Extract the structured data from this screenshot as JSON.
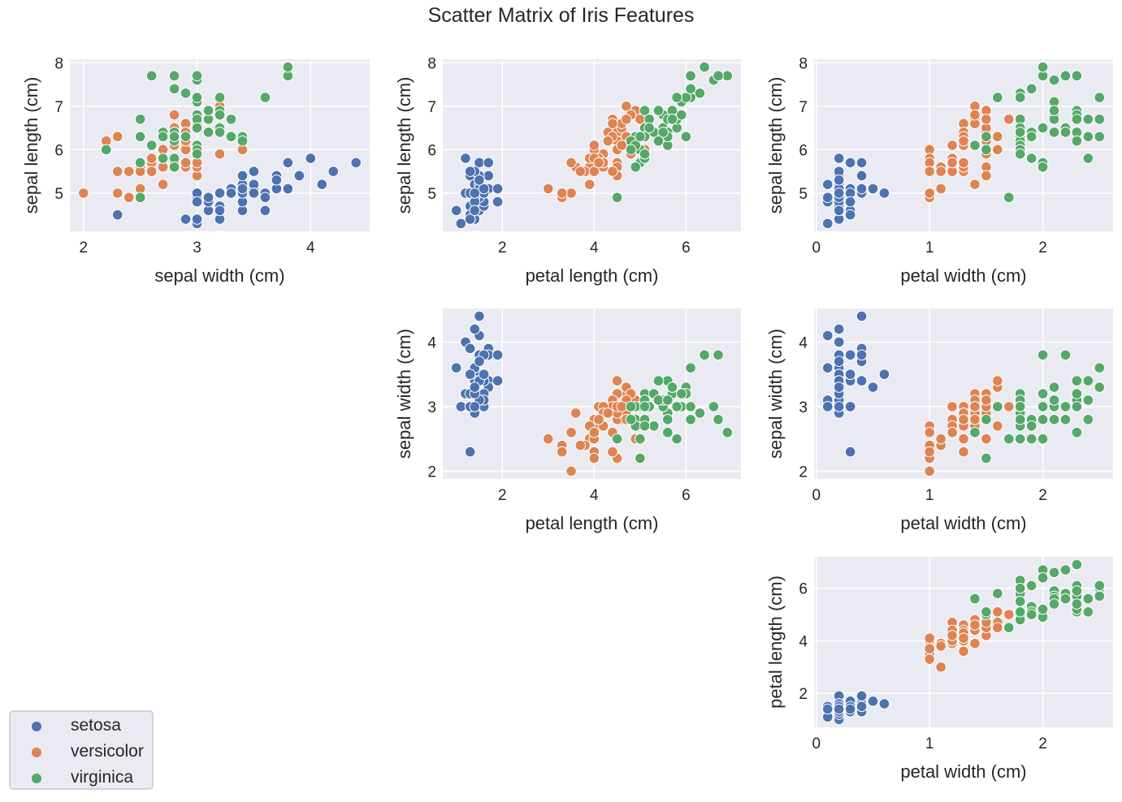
{
  "chart_data": {
    "type": "scatter",
    "title": "Scatter Matrix of Iris Features",
    "grid": true,
    "legend_placement": "bottom-left",
    "features": [
      "sepal length (cm)",
      "sepal width (cm)",
      "petal length (cm)",
      "petal width (cm)"
    ],
    "ticks": {
      "sepal length (cm)": [
        5,
        6,
        7,
        8
      ],
      "sepal width (cm)": [
        2,
        3,
        4
      ],
      "petal length (cm)": [
        2,
        4,
        6
      ],
      "petal width (cm)": [
        0,
        1,
        2
      ]
    },
    "panels": [
      {
        "x": "sepal width (cm)",
        "y": "sepal length (cm)"
      },
      {
        "x": "petal length (cm)",
        "y": "sepal length (cm)"
      },
      {
        "x": "petal width (cm)",
        "y": "sepal length (cm)"
      },
      {
        "x": "petal length (cm)",
        "y": "sepal width (cm)"
      },
      {
        "x": "petal width (cm)",
        "y": "sepal width (cm)"
      },
      {
        "x": "petal width (cm)",
        "y": "petal length (cm)"
      }
    ],
    "series": [
      {
        "name": "setosa",
        "color": "#4c72b0",
        "points": [
          [
            5.1,
            3.5,
            1.4,
            0.2
          ],
          [
            4.9,
            3.0,
            1.4,
            0.2
          ],
          [
            4.7,
            3.2,
            1.3,
            0.2
          ],
          [
            4.6,
            3.1,
            1.5,
            0.2
          ],
          [
            5.0,
            3.6,
            1.4,
            0.2
          ],
          [
            5.4,
            3.9,
            1.7,
            0.4
          ],
          [
            4.6,
            3.4,
            1.4,
            0.3
          ],
          [
            5.0,
            3.4,
            1.5,
            0.2
          ],
          [
            4.4,
            2.9,
            1.4,
            0.2
          ],
          [
            4.9,
            3.1,
            1.5,
            0.1
          ],
          [
            5.4,
            3.7,
            1.5,
            0.2
          ],
          [
            4.8,
            3.4,
            1.6,
            0.2
          ],
          [
            4.8,
            3.0,
            1.4,
            0.1
          ],
          [
            4.3,
            3.0,
            1.1,
            0.1
          ],
          [
            5.8,
            4.0,
            1.2,
            0.2
          ],
          [
            5.7,
            4.4,
            1.5,
            0.4
          ],
          [
            5.4,
            3.9,
            1.3,
            0.4
          ],
          [
            5.1,
            3.5,
            1.4,
            0.3
          ],
          [
            5.7,
            3.8,
            1.7,
            0.3
          ],
          [
            5.1,
            3.8,
            1.5,
            0.3
          ],
          [
            5.4,
            3.4,
            1.7,
            0.2
          ],
          [
            5.1,
            3.7,
            1.5,
            0.4
          ],
          [
            4.6,
            3.6,
            1.0,
            0.2
          ],
          [
            5.1,
            3.3,
            1.7,
            0.5
          ],
          [
            4.8,
            3.4,
            1.9,
            0.2
          ],
          [
            5.0,
            3.0,
            1.6,
            0.2
          ],
          [
            5.0,
            3.4,
            1.6,
            0.4
          ],
          [
            5.2,
            3.5,
            1.5,
            0.2
          ],
          [
            5.2,
            3.4,
            1.4,
            0.2
          ],
          [
            4.7,
            3.2,
            1.6,
            0.2
          ],
          [
            4.8,
            3.1,
            1.6,
            0.2
          ],
          [
            5.4,
            3.4,
            1.5,
            0.4
          ],
          [
            5.2,
            4.1,
            1.5,
            0.1
          ],
          [
            5.5,
            4.2,
            1.4,
            0.2
          ],
          [
            4.9,
            3.1,
            1.5,
            0.2
          ],
          [
            5.0,
            3.2,
            1.2,
            0.2
          ],
          [
            5.5,
            3.5,
            1.3,
            0.2
          ],
          [
            4.9,
            3.6,
            1.4,
            0.1
          ],
          [
            4.4,
            3.0,
            1.3,
            0.2
          ],
          [
            5.1,
            3.4,
            1.5,
            0.2
          ],
          [
            5.0,
            3.5,
            1.3,
            0.3
          ],
          [
            4.5,
            2.3,
            1.3,
            0.3
          ],
          [
            4.4,
            3.2,
            1.3,
            0.2
          ],
          [
            5.0,
            3.5,
            1.6,
            0.6
          ],
          [
            5.1,
            3.8,
            1.9,
            0.4
          ],
          [
            4.8,
            3.0,
            1.4,
            0.3
          ],
          [
            5.1,
            3.8,
            1.6,
            0.2
          ],
          [
            4.6,
            3.2,
            1.4,
            0.2
          ],
          [
            5.3,
            3.7,
            1.5,
            0.2
          ],
          [
            5.0,
            3.3,
            1.4,
            0.2
          ]
        ]
      },
      {
        "name": "versicolor",
        "color": "#dd8452",
        "points": [
          [
            7.0,
            3.2,
            4.7,
            1.4
          ],
          [
            6.4,
            3.2,
            4.5,
            1.5
          ],
          [
            6.9,
            3.1,
            4.9,
            1.5
          ],
          [
            5.5,
            2.3,
            4.0,
            1.3
          ],
          [
            6.5,
            2.8,
            4.6,
            1.5
          ],
          [
            5.7,
            2.8,
            4.5,
            1.3
          ],
          [
            6.3,
            3.3,
            4.7,
            1.6
          ],
          [
            4.9,
            2.4,
            3.3,
            1.0
          ],
          [
            6.6,
            2.9,
            4.6,
            1.3
          ],
          [
            5.2,
            2.7,
            3.9,
            1.4
          ],
          [
            5.0,
            2.0,
            3.5,
            1.0
          ],
          [
            5.9,
            3.0,
            4.2,
            1.5
          ],
          [
            6.0,
            2.2,
            4.0,
            1.0
          ],
          [
            6.1,
            2.9,
            4.7,
            1.4
          ],
          [
            5.6,
            2.9,
            3.6,
            1.3
          ],
          [
            6.7,
            3.1,
            4.4,
            1.4
          ],
          [
            5.6,
            3.0,
            4.5,
            1.5
          ],
          [
            5.8,
            2.7,
            4.1,
            1.0
          ],
          [
            6.2,
            2.2,
            4.5,
            1.5
          ],
          [
            5.6,
            2.5,
            3.9,
            1.1
          ],
          [
            5.9,
            3.2,
            4.8,
            1.8
          ],
          [
            6.1,
            2.8,
            4.0,
            1.3
          ],
          [
            6.3,
            2.5,
            4.9,
            1.5
          ],
          [
            6.1,
            2.8,
            4.7,
            1.2
          ],
          [
            6.4,
            2.9,
            4.3,
            1.3
          ],
          [
            6.6,
            3.0,
            4.4,
            1.4
          ],
          [
            6.8,
            2.8,
            4.8,
            1.4
          ],
          [
            6.7,
            3.0,
            5.0,
            1.7
          ],
          [
            6.0,
            2.9,
            4.5,
            1.5
          ],
          [
            5.7,
            2.6,
            3.5,
            1.0
          ],
          [
            5.5,
            2.4,
            3.8,
            1.1
          ],
          [
            5.5,
            2.4,
            3.7,
            1.0
          ],
          [
            5.8,
            2.7,
            3.9,
            1.2
          ],
          [
            6.0,
            2.7,
            5.1,
            1.6
          ],
          [
            5.4,
            3.0,
            4.5,
            1.5
          ],
          [
            6.0,
            3.4,
            4.5,
            1.6
          ],
          [
            6.7,
            3.1,
            4.7,
            1.5
          ],
          [
            6.3,
            2.3,
            4.4,
            1.3
          ],
          [
            5.6,
            3.0,
            4.1,
            1.3
          ],
          [
            5.5,
            2.5,
            4.0,
            1.3
          ],
          [
            5.5,
            2.6,
            4.4,
            1.2
          ],
          [
            6.1,
            3.0,
            4.6,
            1.4
          ],
          [
            5.8,
            2.6,
            4.0,
            1.2
          ],
          [
            5.0,
            2.3,
            3.3,
            1.0
          ],
          [
            5.6,
            2.7,
            4.2,
            1.3
          ],
          [
            5.7,
            3.0,
            4.2,
            1.2
          ],
          [
            5.7,
            2.9,
            4.2,
            1.3
          ],
          [
            6.2,
            2.9,
            4.3,
            1.3
          ],
          [
            5.1,
            2.5,
            3.0,
            1.1
          ],
          [
            5.7,
            2.8,
            4.1,
            1.3
          ]
        ]
      },
      {
        "name": "virginica",
        "color": "#55a868",
        "points": [
          [
            6.3,
            3.3,
            6.0,
            2.5
          ],
          [
            5.8,
            2.7,
            5.1,
            1.9
          ],
          [
            7.1,
            3.0,
            5.9,
            2.1
          ],
          [
            6.3,
            2.9,
            5.6,
            1.8
          ],
          [
            6.5,
            3.0,
            5.8,
            2.2
          ],
          [
            7.6,
            3.0,
            6.6,
            2.1
          ],
          [
            4.9,
            2.5,
            4.5,
            1.7
          ],
          [
            7.3,
            2.9,
            6.3,
            1.8
          ],
          [
            6.7,
            2.5,
            5.8,
            1.8
          ],
          [
            7.2,
            3.6,
            6.1,
            2.5
          ],
          [
            6.5,
            3.2,
            5.1,
            2.0
          ],
          [
            6.4,
            2.7,
            5.3,
            1.9
          ],
          [
            6.8,
            3.0,
            5.5,
            2.1
          ],
          [
            5.7,
            2.5,
            5.0,
            2.0
          ],
          [
            5.8,
            2.8,
            5.1,
            2.4
          ],
          [
            6.4,
            3.2,
            5.3,
            2.3
          ],
          [
            6.5,
            3.0,
            5.5,
            1.8
          ],
          [
            7.7,
            3.8,
            6.7,
            2.2
          ],
          [
            7.7,
            2.6,
            6.9,
            2.3
          ],
          [
            6.0,
            2.2,
            5.0,
            1.5
          ],
          [
            6.9,
            3.2,
            5.7,
            2.3
          ],
          [
            5.6,
            2.8,
            4.9,
            2.0
          ],
          [
            7.7,
            2.8,
            6.7,
            2.0
          ],
          [
            6.3,
            2.7,
            4.9,
            1.8
          ],
          [
            6.7,
            3.3,
            5.7,
            2.1
          ],
          [
            7.2,
            3.2,
            6.0,
            1.8
          ],
          [
            6.2,
            2.8,
            4.8,
            1.8
          ],
          [
            6.1,
            3.0,
            4.9,
            1.8
          ],
          [
            6.4,
            2.8,
            5.6,
            2.1
          ],
          [
            7.2,
            3.0,
            5.8,
            1.6
          ],
          [
            7.4,
            2.8,
            6.1,
            1.9
          ],
          [
            7.9,
            3.8,
            6.4,
            2.0
          ],
          [
            6.4,
            2.8,
            5.6,
            2.2
          ],
          [
            6.3,
            2.8,
            5.1,
            1.5
          ],
          [
            6.1,
            2.6,
            5.6,
            1.4
          ],
          [
            7.7,
            3.0,
            6.1,
            2.3
          ],
          [
            6.3,
            3.4,
            5.6,
            2.4
          ],
          [
            6.4,
            3.1,
            5.5,
            1.8
          ],
          [
            6.0,
            3.0,
            4.8,
            1.8
          ],
          [
            6.9,
            3.1,
            5.4,
            2.1
          ],
          [
            6.7,
            3.1,
            5.6,
            2.4
          ],
          [
            6.9,
            3.1,
            5.1,
            2.3
          ],
          [
            5.8,
            2.7,
            5.1,
            1.9
          ],
          [
            6.8,
            3.2,
            5.9,
            2.3
          ],
          [
            6.7,
            3.3,
            5.7,
            2.5
          ],
          [
            6.7,
            3.0,
            5.2,
            2.3
          ],
          [
            6.3,
            2.5,
            5.0,
            1.9
          ],
          [
            6.5,
            3.0,
            5.2,
            2.0
          ],
          [
            6.2,
            3.4,
            5.4,
            2.3
          ],
          [
            5.9,
            3.0,
            5.1,
            1.8
          ]
        ]
      }
    ]
  }
}
